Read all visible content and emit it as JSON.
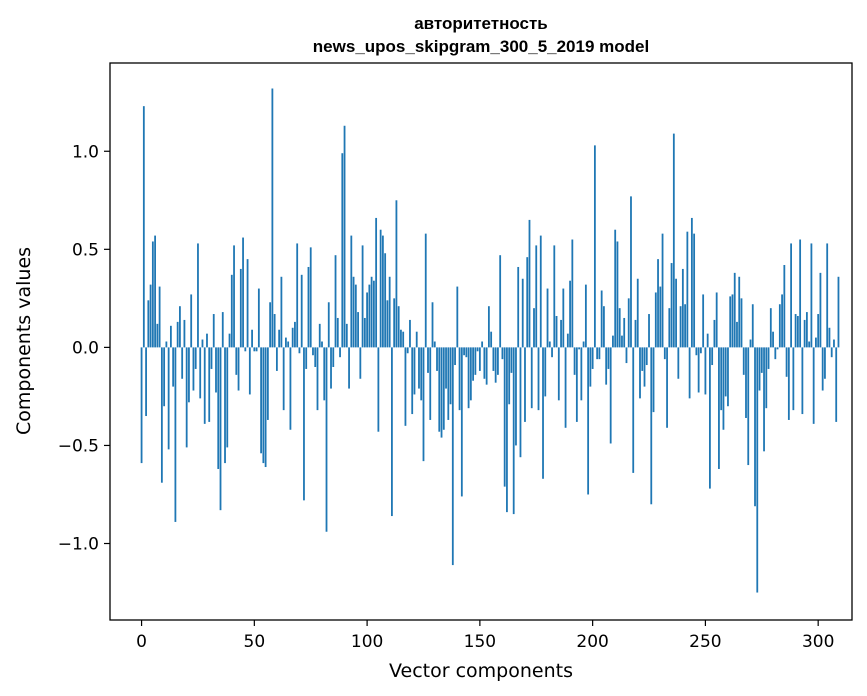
{
  "chart_data": {
    "type": "bar",
    "title": "авторитетность",
    "subtitle": "news_upos_skipgram_300_5_2019 model",
    "xlabel": "Vector components",
    "ylabel": "Components values",
    "xlim": [
      -14,
      315
    ],
    "ylim": [
      -1.39,
      1.45
    ],
    "xticks": [
      0,
      50,
      100,
      150,
      200,
      250,
      300
    ],
    "xtick_labels": [
      "0",
      "50",
      "100",
      "150",
      "200",
      "250",
      "300"
    ],
    "yticks": [
      -1.0,
      -0.5,
      0.0,
      0.5,
      1.0
    ],
    "ytick_labels": [
      "−1.0",
      "−0.5",
      "0.0",
      "0.5",
      "1.0"
    ],
    "bar_color": "#1f77b4",
    "grid": false,
    "values": [
      -0.59,
      1.23,
      -0.35,
      0.24,
      0.32,
      0.54,
      0.57,
      0.12,
      0.31,
      -0.69,
      -0.3,
      0.03,
      -0.52,
      0.11,
      -0.2,
      -0.89,
      0.13,
      0.21,
      -0.16,
      0.14,
      -0.51,
      -0.28,
      0.27,
      -0.22,
      -0.11,
      0.53,
      -0.26,
      0.04,
      -0.39,
      0.07,
      -0.38,
      -0.11,
      0.17,
      -0.23,
      -0.62,
      -0.83,
      0.18,
      -0.59,
      -0.51,
      0.07,
      0.37,
      0.52,
      -0.14,
      -0.22,
      0.4,
      0.56,
      -0.02,
      0.45,
      -0.24,
      0.09,
      -0.02,
      -0.02,
      0.3,
      -0.54,
      -0.59,
      -0.61,
      -0.37,
      0.23,
      1.32,
      0.17,
      -0.12,
      0.09,
      0.36,
      -0.32,
      0.05,
      0.03,
      -0.42,
      0.1,
      0.13,
      0.53,
      -0.03,
      0.37,
      -0.78,
      -0.11,
      0.41,
      0.51,
      -0.04,
      -0.1,
      -0.32,
      0.12,
      0.03,
      -0.27,
      -0.94,
      0.23,
      -0.21,
      -0.1,
      0.47,
      0.15,
      -0.05,
      0.99,
      1.13,
      0.12,
      -0.21,
      0.57,
      0.36,
      0.32,
      0.18,
      -0.16,
      0.52,
      0.15,
      0.28,
      0.32,
      0.36,
      0.34,
      0.66,
      -0.43,
      0.6,
      0.57,
      0.48,
      0.24,
      0.36,
      -0.86,
      0.25,
      0.75,
      0.21,
      0.09,
      0.08,
      -0.4,
      -0.03,
      0.14,
      -0.34,
      -0.24,
      0.08,
      -0.21,
      -0.27,
      -0.58,
      0.58,
      -0.13,
      -0.37,
      0.23,
      0.03,
      -0.12,
      -0.43,
      -0.46,
      -0.42,
      -0.21,
      -0.37,
      -0.29,
      -1.11,
      -0.09,
      0.31,
      -0.32,
      -0.76,
      -0.04,
      -0.05,
      -0.31,
      -0.27,
      -0.17,
      -0.14,
      -0.02,
      -0.12,
      0.03,
      -0.16,
      -0.19,
      0.21,
      0.08,
      -0.12,
      -0.18,
      -0.14,
      0.47,
      -0.06,
      -0.71,
      -0.84,
      -0.29,
      -0.13,
      -0.85,
      -0.5,
      0.41,
      -0.56,
      0.35,
      -0.38,
      0.46,
      0.65,
      -0.31,
      0.2,
      0.52,
      -0.32,
      0.57,
      -0.67,
      -0.25,
      0.3,
      0.03,
      -0.05,
      0.52,
      0.16,
      -0.27,
      0.14,
      0.3,
      -0.41,
      0.07,
      0.34,
      0.55,
      -0.14,
      -0.38,
      -0.01,
      -0.27,
      0.03,
      0.32,
      -0.75,
      -0.2,
      -0.11,
      1.03,
      -0.06,
      -0.06,
      0.29,
      0.21,
      -0.19,
      -0.11,
      -0.49,
      0.06,
      0.6,
      0.54,
      0.2,
      0.06,
      0.15,
      -0.08,
      0.25,
      0.77,
      -0.64,
      0.14,
      0.35,
      -0.26,
      -0.12,
      -0.2,
      -0.09,
      0.17,
      -0.8,
      -0.33,
      0.28,
      0.45,
      0.31,
      0.58,
      -0.06,
      -0.41,
      0.2,
      0.43,
      1.09,
      0.35,
      -0.16,
      0.21,
      0.4,
      0.22,
      0.59,
      -0.26,
      0.66,
      0.58,
      -0.04,
      -0.23,
      -0.03,
      0.27,
      -0.24,
      0.07,
      -0.72,
      -0.09,
      0.14,
      0.28,
      -0.62,
      -0.32,
      -0.42,
      -0.25,
      -0.3,
      0.26,
      0.27,
      0.38,
      0.13,
      0.36,
      0.25,
      -0.14,
      -0.36,
      -0.6,
      0.04,
      0.22,
      -0.81,
      -1.25,
      -0.22,
      -0.13,
      -0.53,
      -0.31,
      -0.11,
      0.2,
      0.08,
      -0.06,
      -0.01,
      0.22,
      0.27,
      0.42,
      -0.15,
      -0.37,
      0.53,
      -0.32,
      0.17,
      0.16,
      0.55,
      -0.34,
      0.14,
      0.18,
      0.03,
      0.53,
      -0.39,
      0.05,
      0.17,
      0.38,
      -0.22,
      -0.16,
      0.53,
      0.1,
      -0.05,
      0.04,
      -0.38,
      0.36
    ]
  }
}
